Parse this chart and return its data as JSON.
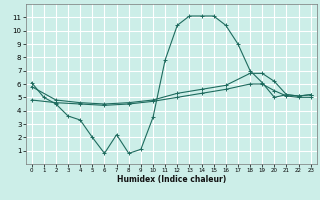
{
  "xlabel": "Humidex (Indice chaleur)",
  "bg_color": "#cceee8",
  "grid_color": "#ffffff",
  "line_color": "#1e6b5e",
  "xlim": [
    -0.5,
    23.5
  ],
  "ylim": [
    0,
    12
  ],
  "xticks": [
    0,
    1,
    2,
    3,
    4,
    5,
    6,
    7,
    8,
    9,
    10,
    11,
    12,
    13,
    14,
    15,
    16,
    17,
    18,
    19,
    20,
    21,
    22,
    23
  ],
  "yticks": [
    1,
    2,
    3,
    4,
    5,
    6,
    7,
    8,
    9,
    10,
    11
  ],
  "line1_x": [
    0,
    1,
    2,
    3,
    4,
    5,
    6,
    7,
    8,
    9,
    10,
    11,
    12,
    13,
    14,
    15,
    16,
    17,
    18,
    19,
    20,
    21,
    22,
    23
  ],
  "line1_y": [
    6.1,
    5.0,
    4.5,
    3.6,
    3.3,
    2.0,
    0.8,
    2.2,
    0.8,
    1.1,
    3.5,
    7.8,
    10.4,
    11.1,
    11.1,
    11.1,
    10.4,
    9.0,
    7.0,
    6.1,
    5.0,
    5.2,
    5.1,
    5.2
  ],
  "line2_x": [
    0,
    2,
    4,
    6,
    8,
    10,
    12,
    14,
    16,
    18,
    19,
    20,
    21,
    22,
    23
  ],
  "line2_y": [
    5.8,
    4.8,
    4.6,
    4.5,
    4.6,
    4.8,
    5.3,
    5.6,
    5.9,
    6.8,
    6.8,
    6.2,
    5.2,
    5.1,
    5.2
  ],
  "line3_x": [
    0,
    2,
    4,
    6,
    8,
    10,
    12,
    14,
    16,
    18,
    19,
    20,
    21,
    22,
    23
  ],
  "line3_y": [
    4.8,
    4.6,
    4.5,
    4.4,
    4.5,
    4.7,
    5.0,
    5.3,
    5.6,
    6.0,
    6.0,
    5.5,
    5.1,
    5.0,
    5.0
  ]
}
